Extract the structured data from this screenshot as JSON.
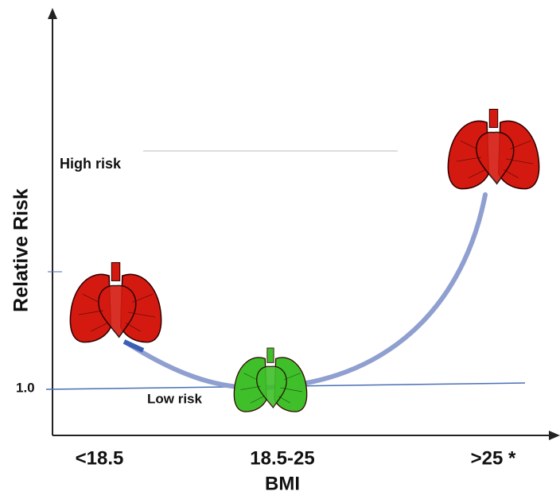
{
  "y_axis": {
    "label": "Relative Risk",
    "tick": "1.0"
  },
  "x_axis": {
    "label": "BMI",
    "categories": [
      "<18.5",
      "18.5-25",
      ">25 *"
    ]
  },
  "annotations": {
    "high": "High risk",
    "low": "Low risk"
  }
}
